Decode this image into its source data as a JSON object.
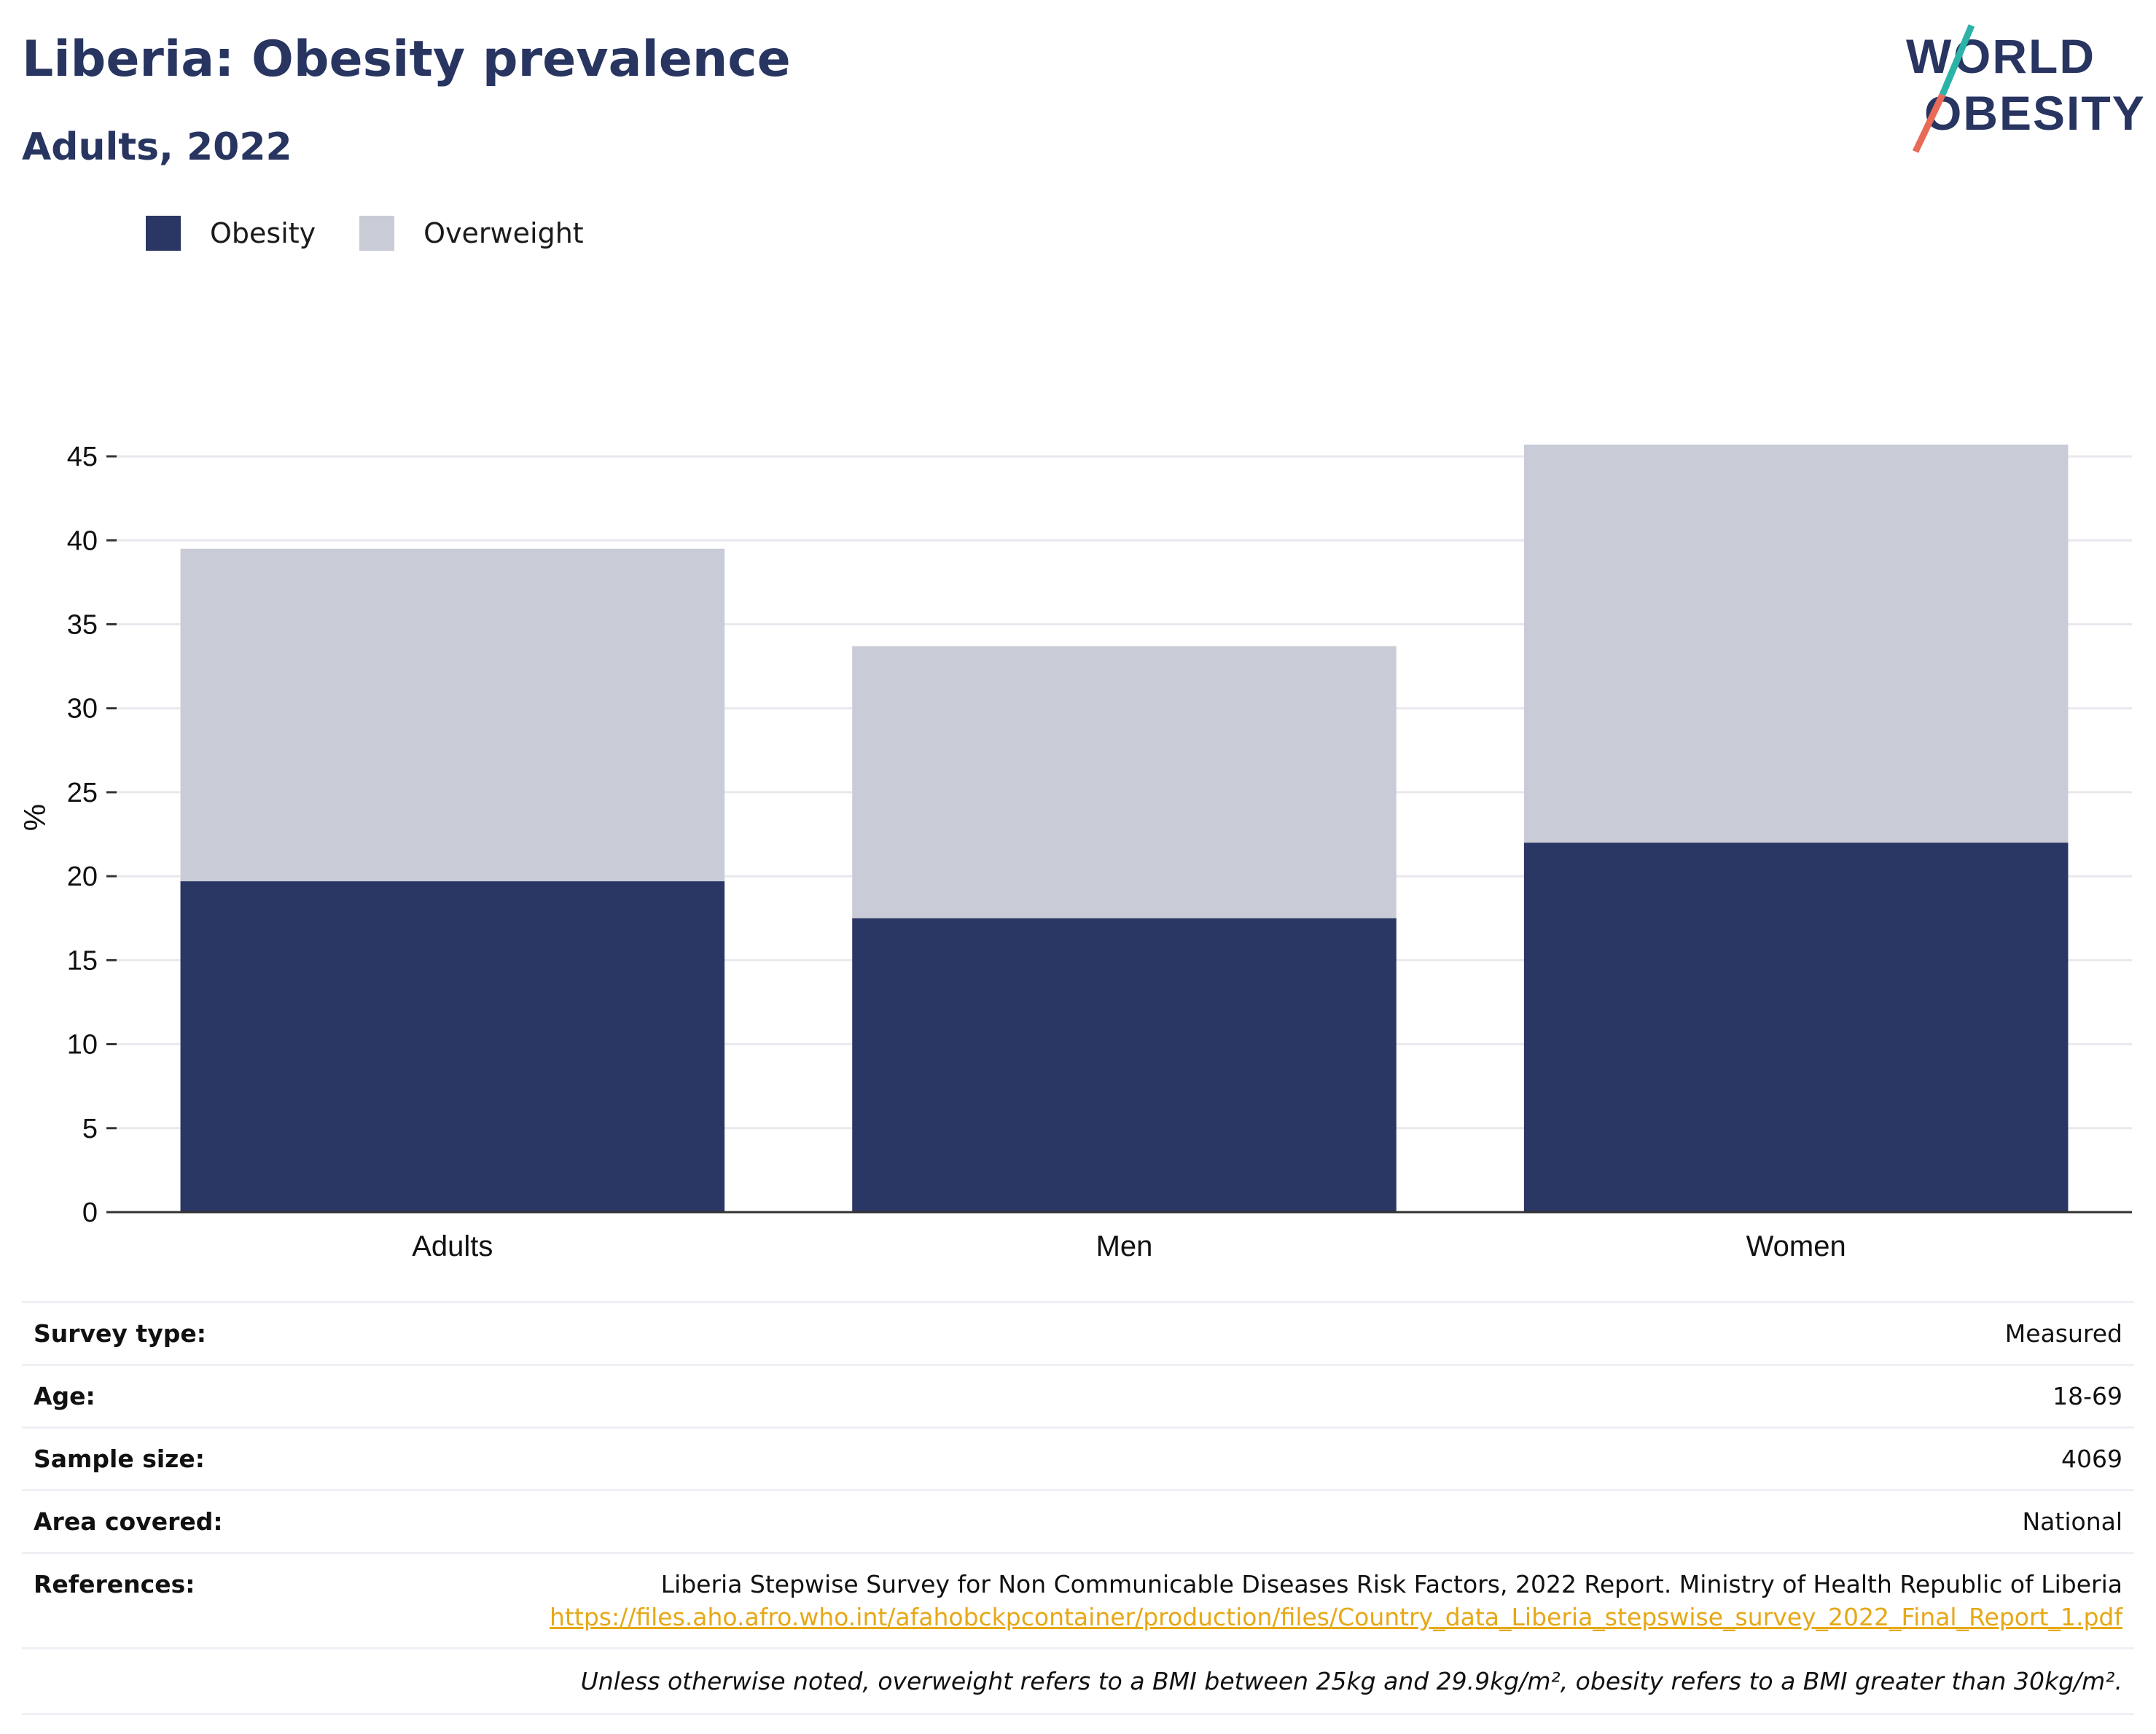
{
  "header": {
    "title": "Liberia: Obesity prevalence",
    "subtitle": "Adults, 2022"
  },
  "logo": {
    "line1": "WORLD",
    "line2": "OBESITY"
  },
  "legend": [
    {
      "label": "Obesity",
      "color": "#2a3663"
    },
    {
      "label": "Overweight",
      "color": "#c9cbd6"
    }
  ],
  "chart_data": {
    "type": "bar",
    "stacked": true,
    "categories": [
      "Adults",
      "Men",
      "Women"
    ],
    "series": [
      {
        "name": "Obesity",
        "values": [
          19.7,
          17.5,
          22.0
        ],
        "color": "#2a3663"
      },
      {
        "name": "Overweight",
        "values": [
          19.8,
          16.2,
          23.7
        ],
        "color": "#c9cbd6"
      }
    ],
    "ylabel": "%",
    "yticks": [
      0,
      5,
      10,
      15,
      20,
      25,
      30,
      35,
      40,
      45
    ],
    "ylim": [
      0,
      47
    ],
    "grid": true,
    "legend_position": "top-left"
  },
  "info": {
    "rows": [
      {
        "key": "Survey type:",
        "value": "Measured"
      },
      {
        "key": "Age:",
        "value": "18-69"
      },
      {
        "key": "Sample size:",
        "value": "4069"
      },
      {
        "key": "Area covered:",
        "value": "National"
      }
    ],
    "references": {
      "key": "References:",
      "text": "Liberia Stepwise Survey for Non Communicable Diseases Risk Factors, 2022 Report. Ministry of Health Republic of Liberia",
      "link": "https://files.aho.afro.who.int/afahobckpcontainer/production/files/Country_data_Liberia_stepswise_survey_2022_Final_Report_1.pdf"
    },
    "note": "Unless otherwise noted, overweight refers to a BMI between 25kg and 29.9kg/m², obesity refers to a BMI greater than 30kg/m²."
  }
}
